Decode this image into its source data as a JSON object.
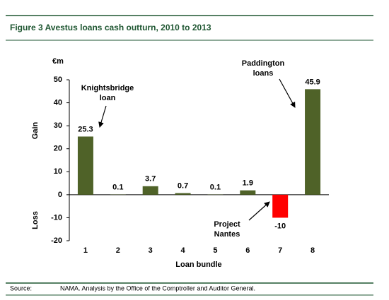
{
  "chart_data": {
    "type": "bar",
    "title": "Figure 3 Avestus loans cash outturn, 2010 to 2013",
    "y_unit": "€m",
    "gain_label": "Gain",
    "loss_label": "Loss",
    "x_label": "Loan bundle",
    "categories": [
      "1",
      "2",
      "3",
      "4",
      "5",
      "6",
      "7",
      "8"
    ],
    "values": [
      25.3,
      0.1,
      3.7,
      0.7,
      0.1,
      1.9,
      -10,
      45.9
    ],
    "colors": [
      "#4f6228",
      "#4f6228",
      "#4f6228",
      "#4f6228",
      "#4f6228",
      "#4f6228",
      "#ff0000",
      "#4f6228"
    ],
    "ylim": [
      -20,
      50
    ],
    "yticks": [
      50,
      40,
      30,
      20,
      10,
      0,
      -10,
      -20
    ],
    "annotations": [
      {
        "lines": [
          "Knightsbridge",
          "loan"
        ]
      },
      {
        "lines": [
          "Paddington",
          "loans"
        ]
      },
      {
        "lines": [
          "Project",
          "Nantes"
        ]
      }
    ],
    "source_label": "Source:",
    "source": "NAMA. Analysis by the Office of the Comptroller and Auditor General."
  }
}
